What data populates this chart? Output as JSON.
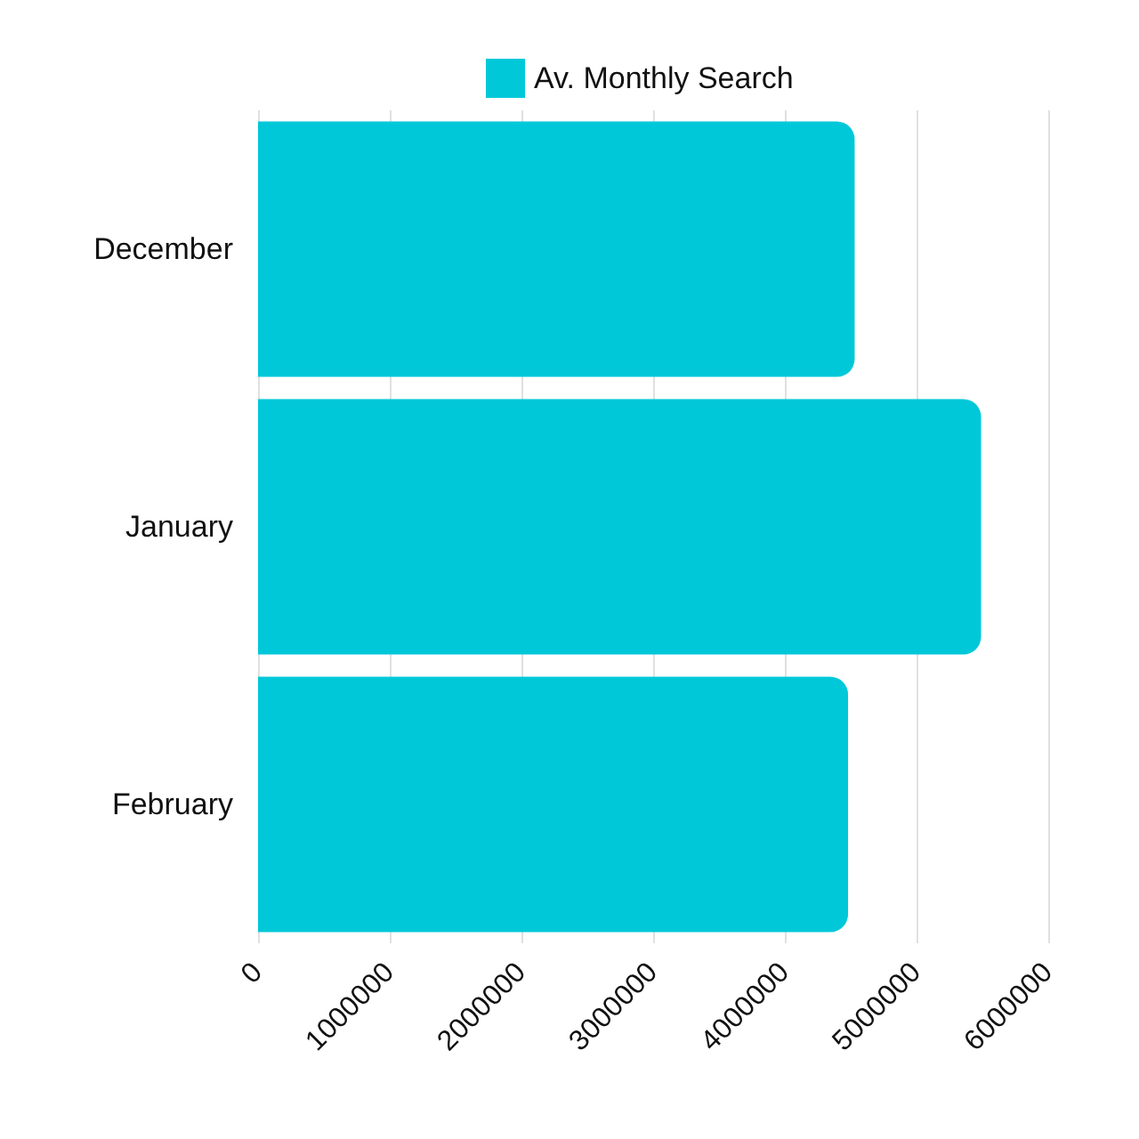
{
  "chart_data": {
    "type": "bar",
    "orientation": "horizontal",
    "categories": [
      "December",
      "January",
      "February"
    ],
    "series": [
      {
        "name": "Av. Monthly Search",
        "color": "#00c8d9",
        "values": [
          4530000,
          5490000,
          4480000
        ]
      }
    ],
    "xlim": [
      0,
      6000000
    ],
    "xticks": [
      0,
      1000000,
      2000000,
      3000000,
      4000000,
      5000000,
      6000000
    ],
    "grid": "x",
    "legend": "top"
  }
}
